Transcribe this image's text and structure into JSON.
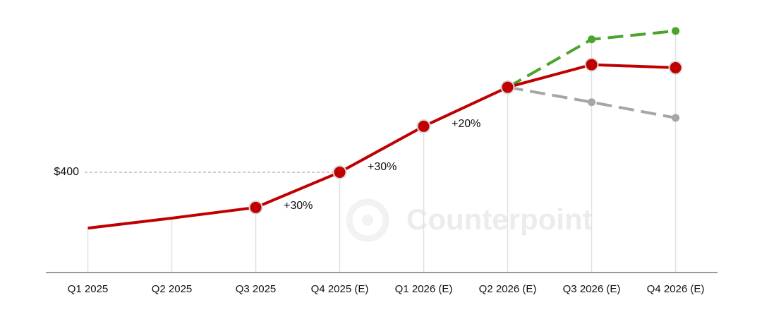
{
  "chart_data": {
    "type": "line",
    "categories": [
      "Q1 2025",
      "Q2 2025",
      "Q3 2025",
      "Q4 2025 (E)",
      "Q1 2026 (E)",
      "Q2 2026 (E)",
      "Q3 2026 (E)",
      "Q4 2026 (E)"
    ],
    "series": [
      {
        "color": "#c00000",
        "dashed": false,
        "markers": [
          false,
          false,
          true,
          true,
          true,
          true,
          true,
          true
        ],
        "values": [
          254,
          280,
          308,
          400,
          520,
          622,
          681,
          673
        ]
      },
      {
        "color": "#4aa52a",
        "dashed": true,
        "markers": [
          false,
          false,
          false,
          false,
          false,
          false,
          true,
          true
        ],
        "values": [
          null,
          null,
          null,
          null,
          null,
          622,
          747,
          769
        ]
      },
      {
        "color": "#a6a6a6",
        "dashed": true,
        "markers": [
          false,
          false,
          false,
          false,
          false,
          false,
          true,
          true
        ],
        "values": [
          null,
          null,
          null,
          null,
          null,
          622,
          583,
          542
        ]
      }
    ],
    "ylim": [
      138,
      813
    ],
    "yticks": [
      {
        "value": 400,
        "label": "$400"
      }
    ],
    "annotations": [
      "+30%",
      "+30%",
      "+20%"
    ],
    "watermark": "Counterpoint"
  }
}
